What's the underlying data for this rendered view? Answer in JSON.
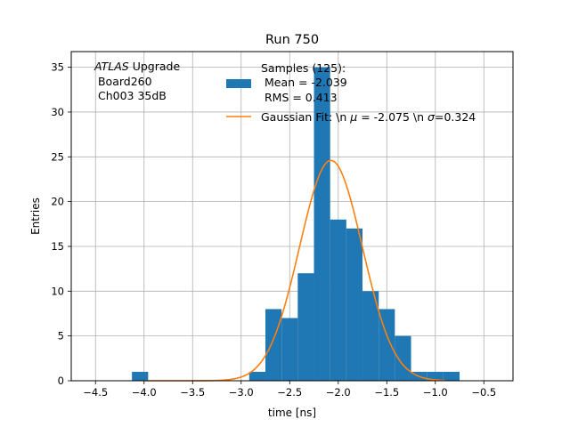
{
  "chart_data": {
    "type": "bar",
    "title": "Run 750",
    "xlabel": "time [ns]",
    "ylabel": "Entries",
    "xlim": [
      -4.75,
      -0.2
    ],
    "ylim": [
      0,
      36.75
    ],
    "grid": true,
    "xticks": [
      -4.5,
      -4.0,
      -3.5,
      -3.0,
      -2.5,
      -2.0,
      -1.5,
      -1.0,
      -0.5
    ],
    "xtick_labels": [
      "−4.5",
      "−4.0",
      "−3.5",
      "−3.0",
      "−2.5",
      "−2.0",
      "−1.5",
      "−1.0",
      "−0.5"
    ],
    "yticks": [
      0,
      5,
      10,
      15,
      20,
      25,
      30,
      35
    ],
    "ytick_labels": [
      "0",
      "5",
      "10",
      "15",
      "20",
      "25",
      "30",
      "35"
    ],
    "bins": [
      {
        "x0": -4.125,
        "x1": -3.958,
        "count": 1
      },
      {
        "x0": -2.917,
        "x1": -2.75,
        "count": 1
      },
      {
        "x0": -2.75,
        "x1": -2.583,
        "count": 8
      },
      {
        "x0": -2.583,
        "x1": -2.417,
        "count": 7
      },
      {
        "x0": -2.417,
        "x1": -2.25,
        "count": 12
      },
      {
        "x0": -2.25,
        "x1": -2.083,
        "count": 35
      },
      {
        "x0": -2.083,
        "x1": -1.917,
        "count": 18
      },
      {
        "x0": -1.917,
        "x1": -1.75,
        "count": 17
      },
      {
        "x0": -1.75,
        "x1": -1.583,
        "count": 10
      },
      {
        "x0": -1.583,
        "x1": -1.417,
        "count": 8
      },
      {
        "x0": -1.417,
        "x1": -1.25,
        "count": 5
      },
      {
        "x0": -1.25,
        "x1": -1.083,
        "count": 1
      },
      {
        "x0": -1.083,
        "x1": -0.917,
        "count": 1
      },
      {
        "x0": -0.917,
        "x1": -0.75,
        "count": 1
      }
    ],
    "fit": {
      "name": "Gaussian Fit",
      "mu": -2.075,
      "sigma": 0.324,
      "amplitude": 24.6,
      "x_range": [
        -4.0,
        -0.9
      ]
    },
    "series_colors": {
      "histogram": "#1f77b4",
      "fit": "#ff7f0e"
    },
    "legend": {
      "location": "top-right",
      "samples_label": [
        "Samples (125):",
        " Mean = -2.039",
        " RMS = 0.413"
      ],
      "fit_label_prefix": "Gaussian Fit: \\n ",
      "fit_mu_symbol": "μ",
      "fit_mu_text": " = -2.075 \\n ",
      "fit_sigma_symbol": "σ",
      "fit_sigma_text": "=0.324"
    },
    "annotation": {
      "italic": "ATLAS",
      "rest": " Upgrade",
      "lines": [
        " Board260",
        " Ch003 35dB"
      ]
    }
  }
}
